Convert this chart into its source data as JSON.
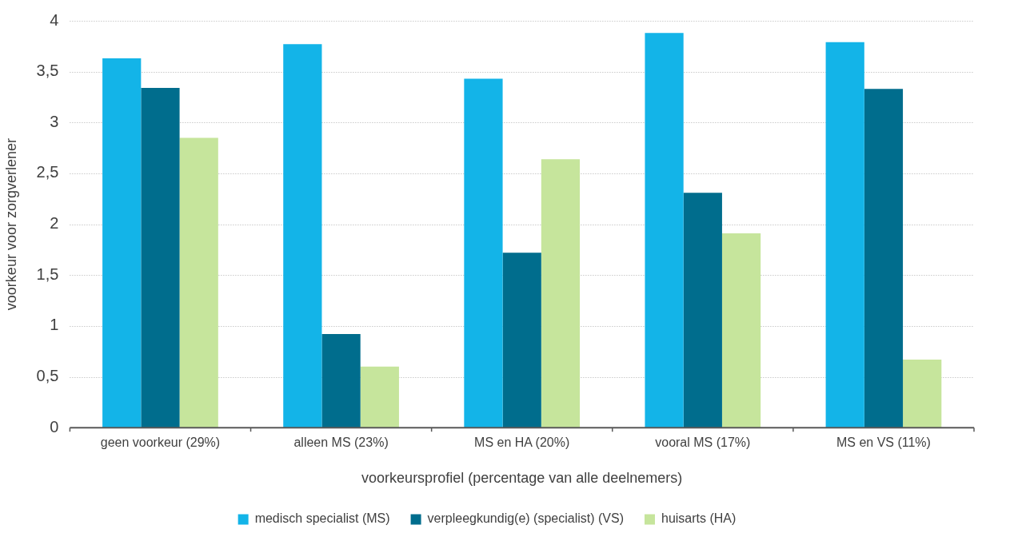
{
  "chart_data": {
    "type": "bar",
    "xlabel": "voorkeursprofiel (percentage van alle deelnemers)",
    "ylabel": "voorkeur voor zorgverlener",
    "categories": [
      "geen voorkeur (29%)",
      "alleen MS (23%)",
      "MS en HA (20%)",
      "vooral MS (17%)",
      "MS en VS (11%)"
    ],
    "series": [
      {
        "name": "medisch specialist (MS)",
        "color": "#13b4e8",
        "values": [
          3.63,
          3.77,
          3.43,
          3.88,
          3.79
        ]
      },
      {
        "name": "verpleegkundig(e) (specialist) (VS)",
        "color": "#006d8d",
        "values": [
          3.34,
          0.92,
          1.72,
          2.31,
          3.33
        ]
      },
      {
        "name": "huisarts (HA)",
        "color": "#c6e59c",
        "values": [
          2.85,
          0.6,
          2.64,
          1.91,
          0.67
        ]
      }
    ],
    "ylim": [
      0,
      4
    ],
    "yticks": [
      {
        "value": 0,
        "label": "0"
      },
      {
        "value": 0.5,
        "label": "0,5"
      },
      {
        "value": 1,
        "label": "1"
      },
      {
        "value": 1.5,
        "label": "1,5"
      },
      {
        "value": 2,
        "label": "2"
      },
      {
        "value": 2.5,
        "label": "2,5"
      },
      {
        "value": 3,
        "label": "3"
      },
      {
        "value": 3.5,
        "label": "3,5"
      },
      {
        "value": 4,
        "label": "4"
      }
    ],
    "grid": "y",
    "legend": "bottom"
  }
}
